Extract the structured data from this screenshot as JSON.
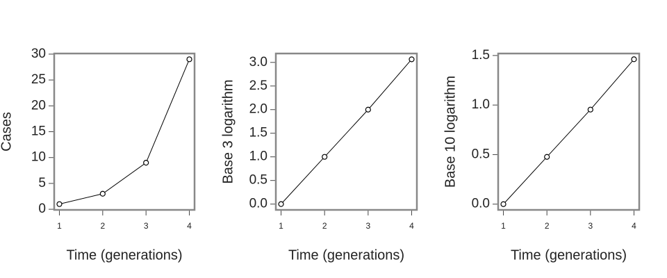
{
  "chart_data": [
    {
      "type": "line",
      "x": [
        1,
        2,
        3,
        4
      ],
      "values": [
        1,
        3,
        9,
        29
      ],
      "color": "#000000",
      "xlim": [
        0.88,
        4.12
      ],
      "ylim": [
        -0.12,
        30.12
      ],
      "xticks": [
        1,
        2,
        3,
        4
      ],
      "yticks": [
        0,
        5,
        10,
        15,
        20,
        25,
        30
      ],
      "xlabel": "Time (generations)",
      "ylabel": "Cases"
    },
    {
      "type": "line",
      "x": [
        1,
        2,
        3,
        4
      ],
      "values": [
        0,
        1,
        2,
        3.065
      ],
      "color": "#000000",
      "xlim": [
        0.88,
        4.12
      ],
      "ylim": [
        -0.123,
        3.188
      ],
      "xticks": [
        1,
        2,
        3,
        4
      ],
      "yticks": [
        {
          "value": 0,
          "label": "0.0"
        },
        {
          "value": 0.5,
          "label": "0.5"
        },
        {
          "value": 1,
          "label": "1.0"
        },
        {
          "value": 1.5,
          "label": "1.5"
        },
        {
          "value": 2,
          "label": "2.0"
        },
        {
          "value": 2.5,
          "label": "2.5"
        },
        {
          "value": 3,
          "label": "3.0"
        }
      ],
      "xlabel": "Time (generations)",
      "ylabel": "Base 3 logarithm"
    },
    {
      "type": "line",
      "x": [
        1,
        2,
        3,
        4
      ],
      "values": [
        0,
        0.477,
        0.954,
        1.462
      ],
      "color": "#000000",
      "xlim": [
        0.88,
        4.12
      ],
      "ylim": [
        -0.058,
        1.52
      ],
      "xticks": [
        1,
        2,
        3,
        4
      ],
      "yticks": [
        {
          "value": 0,
          "label": "0.0"
        },
        {
          "value": 0.5,
          "label": "0.5"
        },
        {
          "value": 1,
          "label": "1.0"
        },
        {
          "value": 1.5,
          "label": "1.5"
        }
      ],
      "xlabel": "Time (generations)",
      "ylabel": "Base 10 logarithm"
    }
  ]
}
